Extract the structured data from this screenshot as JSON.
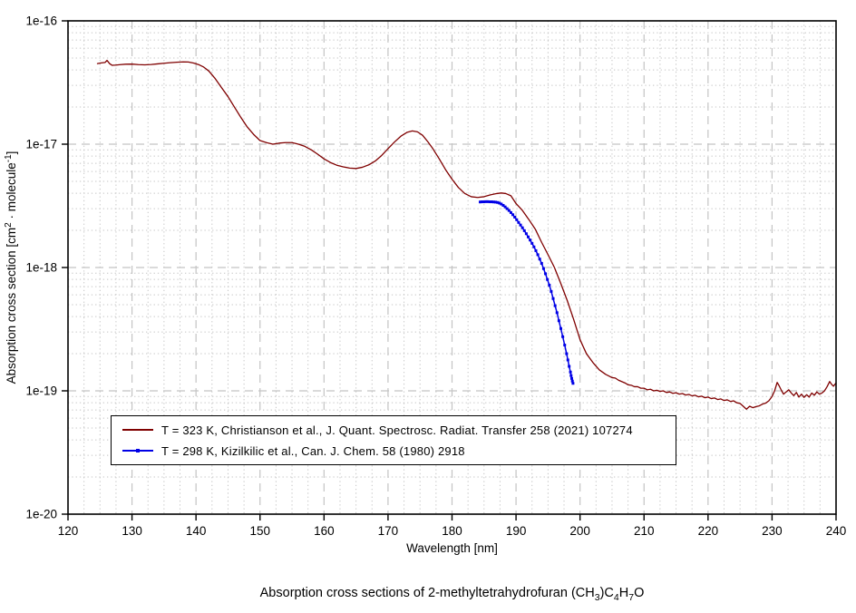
{
  "figure": {
    "xlabel": "Wavelength [nm]",
    "ylabel_parts": [
      {
        "t": "Absorption cross section [cm"
      },
      {
        "t": "2",
        "sup": true
      },
      {
        "t": " · molecule"
      },
      {
        "t": "-1",
        "sup": true
      },
      {
        "t": "]"
      }
    ],
    "caption_parts": [
      {
        "t": "Absorption cross sections of 2-methyltetrahydrofuran (CH"
      },
      {
        "t": "3",
        "sub": true
      },
      {
        "t": ")C"
      },
      {
        "t": "4",
        "sub": true
      },
      {
        "t": "H"
      },
      {
        "t": "7",
        "sub": true
      },
      {
        "t": "O"
      }
    ],
    "x_ticks": [
      120,
      130,
      140,
      150,
      160,
      170,
      180,
      190,
      200,
      210,
      220,
      230,
      240
    ],
    "y_tick_labels": [
      "1e-16",
      "1e-17",
      "1e-18",
      "1e-19",
      "1e-20"
    ],
    "y_tick_exponents": [
      -16,
      -17,
      -18,
      -19,
      -20
    ]
  },
  "chart_data": {
    "type": "line",
    "title": "Absorption cross sections of 2-methyltetrahydrofuran (CH3)C4H7O",
    "xlabel": "Wavelength [nm]",
    "ylabel": "Absorption cross section [cm2 · molecule-1]",
    "x_axis": {
      "scale": "linear",
      "min": 120,
      "max": 240,
      "major_tick": 10,
      "minor_tick": 2.5
    },
    "y_axis": {
      "scale": "log",
      "min": 1e-20,
      "max": 1e-16,
      "tick_labels": [
        "1e-16",
        "1e-17",
        "1e-18",
        "1e-19",
        "1e-20"
      ]
    },
    "grid": {
      "major": "dashed",
      "minor": "dotted",
      "color": "#c4c4c4"
    },
    "legend": {
      "position": "inside-bottom-left",
      "border_color": "#000000",
      "background": "#ffffff"
    },
    "series": [
      {
        "name": "T = 323 K, Christianson et al., J. Quant. Spectrosc. Radiat. Transfer 258 (2021) 107274",
        "color": "#7f0000",
        "marker": "none",
        "line_width": 1.3,
        "points": [
          [
            124.6,
            4.5e-17
          ],
          [
            125.2,
            4.56e-17
          ],
          [
            125.8,
            4.6e-17
          ],
          [
            126.1,
            4.78e-17
          ],
          [
            126.5,
            4.5e-17
          ],
          [
            126.9,
            4.36e-17
          ],
          [
            127.5,
            4.38e-17
          ],
          [
            128.2,
            4.42e-17
          ],
          [
            129,
            4.45e-17
          ],
          [
            130,
            4.46e-17
          ],
          [
            131,
            4.42e-17
          ],
          [
            132,
            4.4e-17
          ],
          [
            133,
            4.43e-17
          ],
          [
            134,
            4.48e-17
          ],
          [
            135,
            4.53e-17
          ],
          [
            136,
            4.58e-17
          ],
          [
            137,
            4.62e-17
          ],
          [
            138,
            4.65e-17
          ],
          [
            138.8,
            4.64e-17
          ],
          [
            139.6,
            4.55e-17
          ],
          [
            140.4,
            4.42e-17
          ],
          [
            141.2,
            4.22e-17
          ],
          [
            142,
            3.92e-17
          ],
          [
            143,
            3.4e-17
          ],
          [
            144,
            2.87e-17
          ],
          [
            145,
            2.43e-17
          ],
          [
            146,
            2e-17
          ],
          [
            147,
            1.65e-17
          ],
          [
            148,
            1.38e-17
          ],
          [
            149,
            1.2e-17
          ],
          [
            150,
            1.07e-17
          ],
          [
            151,
            1.03e-17
          ],
          [
            152,
            1e-17
          ],
          [
            153,
            1.02e-17
          ],
          [
            154,
            1.03e-17
          ],
          [
            155,
            1.03e-17
          ],
          [
            156,
            1e-17
          ],
          [
            157,
            9.6e-18
          ],
          [
            158,
            9e-18
          ],
          [
            159,
            8.3e-18
          ],
          [
            160,
            7.6e-18
          ],
          [
            161,
            7.1e-18
          ],
          [
            162,
            6.75e-18
          ],
          [
            163,
            6.55e-18
          ],
          [
            164,
            6.4e-18
          ],
          [
            165,
            6.35e-18
          ],
          [
            166,
            6.5e-18
          ],
          [
            167,
            6.8e-18
          ],
          [
            168,
            7.3e-18
          ],
          [
            169,
            8.1e-18
          ],
          [
            170,
            9.2e-18
          ],
          [
            171,
            1.04e-17
          ],
          [
            172,
            1.16e-17
          ],
          [
            173,
            1.25e-17
          ],
          [
            173.8,
            1.28e-17
          ],
          [
            174.6,
            1.26e-17
          ],
          [
            175.4,
            1.18e-17
          ],
          [
            176.2,
            1.05e-17
          ],
          [
            177,
            9.2e-18
          ],
          [
            178,
            7.6e-18
          ],
          [
            179,
            6.2e-18
          ],
          [
            180,
            5.2e-18
          ],
          [
            181,
            4.45e-18
          ],
          [
            182,
            3.98e-18
          ],
          [
            183,
            3.75e-18
          ],
          [
            184,
            3.7e-18
          ],
          [
            185,
            3.75e-18
          ],
          [
            186,
            3.88e-18
          ],
          [
            187,
            3.98e-18
          ],
          [
            187.7,
            4.02e-18
          ],
          [
            188.4,
            3.98e-18
          ],
          [
            189.2,
            3.82e-18
          ],
          [
            190,
            3.3e-18
          ],
          [
            191,
            2.9e-18
          ],
          [
            192,
            2.45e-18
          ],
          [
            193,
            2.05e-18
          ],
          [
            194,
            1.6e-18
          ],
          [
            195,
            1.27e-18
          ],
          [
            196,
            1e-18
          ],
          [
            197,
            7.4e-19
          ],
          [
            198,
            5.4e-19
          ],
          [
            199,
            3.8e-19
          ],
          [
            200,
            2.6e-19
          ],
          [
            201,
            2e-19
          ],
          [
            202,
            1.7e-19
          ],
          [
            203,
            1.48e-19
          ],
          [
            204,
            1.36e-19
          ],
          [
            205,
            1.28e-19
          ],
          [
            205.5,
            1.27e-19
          ],
          [
            206,
            1.22e-19
          ],
          [
            206.5,
            1.19e-19
          ],
          [
            207,
            1.16e-19
          ],
          [
            207.5,
            1.12e-19
          ],
          [
            208,
            1.11e-19
          ],
          [
            208.5,
            1.08e-19
          ],
          [
            209,
            1.08e-19
          ],
          [
            209.5,
            1.05e-19
          ],
          [
            210,
            1.05e-19
          ],
          [
            210.5,
            1.02e-19
          ],
          [
            211,
            1.03e-19
          ],
          [
            211.5,
            1e-19
          ],
          [
            212,
            1.01e-19
          ],
          [
            212.5,
            9.9e-20
          ],
          [
            213,
            1e-19
          ],
          [
            213.5,
            9.7e-20
          ],
          [
            214,
            9.8e-20
          ],
          [
            214.5,
            9.55e-20
          ],
          [
            215,
            9.65e-20
          ],
          [
            215.5,
            9.4e-20
          ],
          [
            216,
            9.5e-20
          ],
          [
            216.5,
            9.25e-20
          ],
          [
            217,
            9.35e-20
          ],
          [
            217.5,
            9.1e-20
          ],
          [
            218,
            9.2e-20
          ],
          [
            218.5,
            8.95e-20
          ],
          [
            219,
            9.05e-20
          ],
          [
            219.5,
            8.8e-20
          ],
          [
            220,
            8.9e-20
          ],
          [
            220.5,
            8.65e-20
          ],
          [
            221,
            8.75e-20
          ],
          [
            221.5,
            8.5e-20
          ],
          [
            222,
            8.6e-20
          ],
          [
            222.5,
            8.35e-20
          ],
          [
            223,
            8.45e-20
          ],
          [
            223.5,
            8.2e-20
          ],
          [
            224,
            8.3e-20
          ],
          [
            224.5,
            8e-20
          ],
          [
            225,
            7.9e-20
          ],
          [
            225.5,
            7.5e-20
          ],
          [
            226,
            7.1e-20
          ],
          [
            226.5,
            7.5e-20
          ],
          [
            227,
            7.3e-20
          ],
          [
            227.5,
            7.45e-20
          ],
          [
            228,
            7.55e-20
          ],
          [
            228.5,
            7.8e-20
          ],
          [
            229,
            7.95e-20
          ],
          [
            229.5,
            8.3e-20
          ],
          [
            230,
            9e-20
          ],
          [
            230.4,
            1e-19
          ],
          [
            230.8,
            1.17e-19
          ],
          [
            231.1,
            1.1e-19
          ],
          [
            231.5,
            1e-19
          ],
          [
            231.8,
            9.4e-20
          ],
          [
            232.2,
            9.8e-20
          ],
          [
            232.6,
            1.02e-19
          ],
          [
            233,
            9.6e-20
          ],
          [
            233.4,
            9.15e-20
          ],
          [
            233.8,
            9.7e-20
          ],
          [
            234.2,
            8.9e-20
          ],
          [
            234.6,
            9.4e-20
          ],
          [
            235,
            8.85e-20
          ],
          [
            235.4,
            9.3e-20
          ],
          [
            235.8,
            8.9e-20
          ],
          [
            236.2,
            9.6e-20
          ],
          [
            236.6,
            9.2e-20
          ],
          [
            237,
            9.8e-20
          ],
          [
            237.4,
            9.4e-20
          ],
          [
            237.8,
            9.6e-20
          ],
          [
            238.2,
            1e-19
          ],
          [
            238.6,
            1.08e-19
          ],
          [
            239,
            1.19e-19
          ],
          [
            239.3,
            1.13e-19
          ],
          [
            239.6,
            1.09e-19
          ],
          [
            240,
            1.16e-19
          ]
        ]
      },
      {
        "name": "T = 298 K, Kizilkilic et al., Can. J. Chem. 58 (1980) 2918",
        "color": "#0000e6",
        "marker": "square",
        "marker_size": 3,
        "line_width": 1.5,
        "points": [
          [
            184.4,
            3.4e-18
          ],
          [
            184.7,
            3.41e-18
          ],
          [
            185.0,
            3.41e-18
          ],
          [
            185.3,
            3.42e-18
          ],
          [
            185.6,
            3.42e-18
          ],
          [
            185.9,
            3.41e-18
          ],
          [
            186.2,
            3.41e-18
          ],
          [
            186.5,
            3.4e-18
          ],
          [
            186.8,
            3.39e-18
          ],
          [
            187.1,
            3.37e-18
          ],
          [
            187.4,
            3.33e-18
          ],
          [
            187.7,
            3.27e-18
          ],
          [
            188.0,
            3.19e-18
          ],
          [
            188.3,
            3.1e-18
          ],
          [
            188.6,
            3e-18
          ],
          [
            188.9,
            2.9e-18
          ],
          [
            189.2,
            2.79e-18
          ],
          [
            189.5,
            2.68e-18
          ],
          [
            189.8,
            2.56e-18
          ],
          [
            190.1,
            2.44e-18
          ],
          [
            190.4,
            2.32e-18
          ],
          [
            190.7,
            2.21e-18
          ],
          [
            191.0,
            2.1e-18
          ],
          [
            191.3,
            1.99e-18
          ],
          [
            191.6,
            1.88e-18
          ],
          [
            191.9,
            1.77e-18
          ],
          [
            192.2,
            1.67e-18
          ],
          [
            192.5,
            1.57e-18
          ],
          [
            192.8,
            1.47e-18
          ],
          [
            193.1,
            1.37e-18
          ],
          [
            193.4,
            1.27e-18
          ],
          [
            193.7,
            1.17e-18
          ],
          [
            194.0,
            1.08e-18
          ],
          [
            194.3,
            9.8e-19
          ],
          [
            194.6,
            8.9e-19
          ],
          [
            194.9,
            8e-19
          ],
          [
            195.2,
            7.2e-19
          ],
          [
            195.5,
            6.4e-19
          ],
          [
            195.8,
            5.6e-19
          ],
          [
            196.1,
            4.9e-19
          ],
          [
            196.4,
            4.3e-19
          ],
          [
            196.7,
            3.7e-19
          ],
          [
            197.0,
            3.2e-19
          ],
          [
            197.3,
            2.75e-19
          ],
          [
            197.6,
            2.35e-19
          ],
          [
            197.9,
            2e-19
          ],
          [
            198.1,
            1.78e-19
          ],
          [
            198.3,
            1.58e-19
          ],
          [
            198.5,
            1.42e-19
          ],
          [
            198.6,
            1.33e-19
          ],
          [
            198.7,
            1.26e-19
          ],
          [
            198.8,
            1.2e-19
          ],
          [
            198.9,
            1.15e-19
          ]
        ]
      }
    ]
  }
}
